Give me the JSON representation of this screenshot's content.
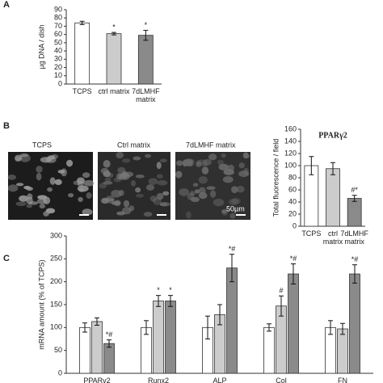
{
  "chart_data": [
    {
      "type": "bar",
      "panel": "A",
      "y_label": "µg DNA / dish",
      "categories": [
        "TCPS",
        "ctrl matrix",
        "7dLMHF matrix"
      ],
      "values": [
        74,
        61,
        59
      ],
      "errors": [
        2,
        1.5,
        6
      ],
      "annotations": [
        null,
        "*",
        "*"
      ],
      "colors": [
        "#ffffff",
        "#cccccc",
        "#8a8a8a"
      ],
      "ylim": [
        0,
        90
      ],
      "yticks": [
        0,
        10,
        20,
        30,
        40,
        50,
        60,
        70,
        80,
        90
      ]
    },
    {
      "type": "bar",
      "panel": "B",
      "title": "PPARγ2",
      "y_label": "Total fluorescence / field",
      "categories": [
        "TCPS",
        "ctrl matrix",
        "7dLMHF matrix"
      ],
      "values": [
        100,
        95,
        46
      ],
      "errors": [
        15,
        10,
        5
      ],
      "annotations": [
        null,
        null,
        "#*"
      ],
      "colors": [
        "#ffffff",
        "#cccccc",
        "#8a8a8a"
      ],
      "ylim": [
        0,
        160
      ],
      "yticks": [
        0,
        20,
        40,
        60,
        80,
        100,
        120,
        140,
        160
      ]
    },
    {
      "type": "bar",
      "panel": "C",
      "y_label": "mRNA amount (% of TCPS)",
      "categories": [
        "PPARγ2",
        "Runx2",
        "ALP",
        "Col",
        "FN"
      ],
      "series": [
        {
          "color": "#ffffff",
          "values": [
            100,
            100,
            100,
            100,
            100
          ],
          "errors": [
            10,
            15,
            25,
            8,
            15
          ],
          "annotations": [
            null,
            null,
            null,
            null,
            null
          ]
        },
        {
          "color": "#cccccc",
          "values": [
            113,
            158,
            128,
            147,
            97
          ],
          "errors": [
            8,
            12,
            22,
            22,
            12
          ],
          "annotations": [
            null,
            "*",
            null,
            "#",
            null
          ]
        },
        {
          "color": "#8a8a8a",
          "values": [
            65,
            158,
            230,
            217,
            217
          ],
          "errors": [
            8,
            12,
            30,
            22,
            20
          ],
          "annotations": [
            "*#",
            "*",
            "*#",
            "*#",
            "*#"
          ]
        }
      ],
      "ylim": [
        0,
        300
      ],
      "yticks": [
        0,
        50,
        100,
        150,
        200,
        250,
        300
      ]
    }
  ],
  "micrographs": {
    "labels": [
      "TCPS",
      "Ctrl matrix",
      "7dLMHF matrix"
    ],
    "scale_bar": "50µm"
  }
}
